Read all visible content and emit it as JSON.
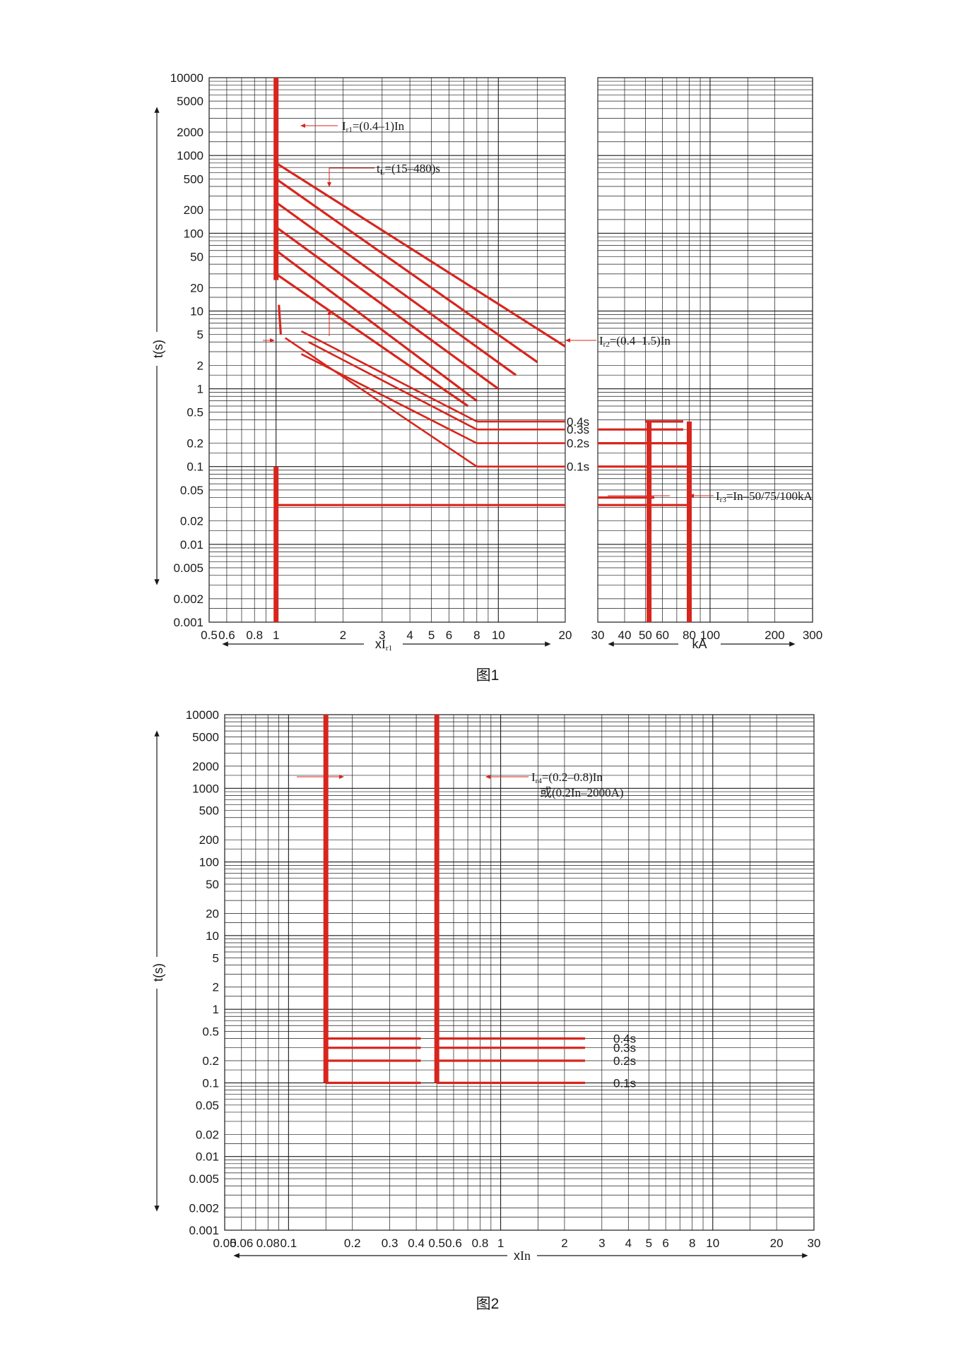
{
  "chart_data": [
    {
      "type": "line",
      "title": "",
      "caption": "图1",
      "ylabel": "t(s)",
      "y_scale": "log",
      "ylim": [
        0.001,
        10000
      ],
      "y_ticks": [
        "10000",
        "5000",
        "2000",
        "1000",
        "500",
        "200",
        "100",
        "50",
        "20",
        "10",
        "5",
        "2",
        "1",
        "0.5",
        "0.2",
        "0.1",
        "0.05",
        "0.02",
        "0.01",
        "0.005",
        "0.002",
        "0.001"
      ],
      "x_axes": [
        {
          "label": "xIr1",
          "scale": "log",
          "xlim": [
            0.5,
            20
          ],
          "ticks": [
            "0.5",
            "0.6",
            "0.8",
            "1",
            "2",
            "3",
            "4",
            "5",
            "6",
            "8",
            "10",
            "20"
          ]
        },
        {
          "label": "kA",
          "scale": "log",
          "xlim": [
            30,
            300
          ],
          "ticks": [
            "30",
            "40",
            "50",
            "60",
            "80",
            "100",
            "200",
            "300"
          ]
        }
      ],
      "annotations": {
        "ir1": {
          "main": "Ir1=(0.4–1)In"
        },
        "tl": {
          "main": "tL=(15–480)s"
        },
        "ir2": {
          "main": "Ir2=(0.4–1.5)In"
        },
        "ir3": {
          "main": "Ir3=In–50/75/100kA"
        }
      },
      "series": [
        {
          "values": [
            [
              1.0,
              10000
            ],
            [
              1.0,
              25
            ]
          ]
        },
        {
          "values": [
            [
              1.0,
              800
            ],
            [
              20,
              3.5
            ]
          ]
        },
        {
          "values": [
            [
              1.0,
              500
            ],
            [
              15,
              2.2
            ]
          ]
        },
        {
          "values": [
            [
              1.0,
              250
            ],
            [
              12,
              1.5
            ]
          ]
        },
        {
          "values": [
            [
              1.0,
              120
            ],
            [
              10,
              1.0
            ]
          ]
        },
        {
          "values": [
            [
              1.0,
              60
            ],
            [
              8,
              0.7
            ]
          ]
        },
        {
          "values": [
            [
              1.0,
              30
            ],
            [
              7.3,
              0.6
            ]
          ]
        },
        {
          "values": [
            [
              1.03,
              12
            ],
            [
              1.05,
              5
            ]
          ]
        },
        {
          "values": [
            [
              1.3,
              5.5
            ],
            [
              8,
              0.38
            ],
            [
              20,
              0.38
            ]
          ]
        },
        {
          "values": [
            [
              1.4,
              4
            ],
            [
              8,
              0.3
            ],
            [
              20,
              0.3
            ]
          ]
        },
        {
          "values": [
            [
              1.3,
              2.8
            ],
            [
              8,
              0.2
            ],
            [
              20,
              0.2
            ]
          ]
        },
        {
          "values": [
            [
              1.1,
              4.5
            ],
            [
              8,
              0.1
            ],
            [
              20,
              0.1
            ]
          ]
        },
        {
          "values": [
            [
              1.0,
              0.1
            ],
            [
              1.0,
              0.001
            ]
          ]
        },
        {
          "values": [
            [
              1.0,
              0.032
            ],
            [
              20,
              0.032
            ]
          ]
        },
        {
          "values": [
            [
              50,
              0.38
            ],
            [
              75,
              0.38
            ]
          ]
        },
        {
          "values": [
            [
              30,
              0.3
            ],
            [
              75,
              0.3
            ]
          ]
        },
        {
          "values": [
            [
              30,
              0.2
            ],
            [
              80,
              0.2
            ]
          ]
        },
        {
          "values": [
            [
              30,
              0.1
            ],
            [
              80,
              0.1
            ]
          ]
        },
        {
          "values": [
            [
              30,
              0.04
            ],
            [
              55,
              0.04
            ]
          ]
        },
        {
          "values": [
            [
              30,
              0.032
            ],
            [
              80,
              0.032
            ]
          ]
        },
        {
          "values": [
            [
              52,
              0.38
            ],
            [
              52,
              0.001
            ]
          ]
        },
        {
          "values": [
            [
              80,
              0.38
            ],
            [
              80,
              0.001
            ]
          ]
        }
      ],
      "time_labels": [
        "0.4s",
        "0.3s",
        "0.2s",
        "0.1s"
      ],
      "colors": {
        "curve": "#d8251d",
        "grid": "#1a1a1a"
      }
    },
    {
      "type": "line",
      "title": "",
      "caption": "图2",
      "ylabel": "t(s)",
      "y_scale": "log",
      "ylim": [
        0.001,
        10000
      ],
      "y_ticks": [
        "10000",
        "5000",
        "2000",
        "1000",
        "500",
        "200",
        "100",
        "50",
        "20",
        "10",
        "5",
        "2",
        "1",
        "0.5",
        "0.2",
        "0.1",
        "0.05",
        "0.02",
        "0.01",
        "0.005",
        "0.002",
        "0.001"
      ],
      "x_axes": [
        {
          "label": "xIn",
          "scale": "log",
          "xlim": [
            0.05,
            30
          ],
          "ticks": [
            "0.05",
            "0.06",
            "0.08",
            "0.1",
            "0.2",
            "0.3",
            "0.4",
            "0.5",
            "0.6",
            "0.8",
            "1",
            "2",
            "3",
            "4",
            "5",
            "6",
            "8",
            "10",
            "20",
            "30"
          ]
        }
      ],
      "annotations": {
        "ir4": {
          "main": "Ir4=(0.2–0.8)In",
          "alt": "或(0.2In–2000A)"
        }
      },
      "series": [
        {
          "values": [
            [
              0.15,
              10000
            ],
            [
              0.15,
              0.1
            ]
          ]
        },
        {
          "values": [
            [
              0.5,
              10000
            ],
            [
              0.5,
              0.1
            ]
          ]
        },
        {
          "values": [
            [
              0.15,
              0.4
            ],
            [
              0.42,
              0.4
            ]
          ]
        },
        {
          "values": [
            [
              0.15,
              0.3
            ],
            [
              0.42,
              0.3
            ]
          ]
        },
        {
          "values": [
            [
              0.15,
              0.2
            ],
            [
              0.42,
              0.2
            ]
          ]
        },
        {
          "values": [
            [
              0.15,
              0.1
            ],
            [
              0.42,
              0.1
            ]
          ]
        },
        {
          "values": [
            [
              0.5,
              0.4
            ],
            [
              2.5,
              0.4
            ]
          ]
        },
        {
          "values": [
            [
              0.5,
              0.3
            ],
            [
              2.5,
              0.3
            ]
          ]
        },
        {
          "values": [
            [
              0.5,
              0.2
            ],
            [
              2.5,
              0.2
            ]
          ]
        },
        {
          "values": [
            [
              0.5,
              0.1
            ],
            [
              2.5,
              0.1
            ]
          ]
        }
      ],
      "time_labels": [
        "0.4s",
        "0.3s",
        "0.2s",
        "0.1s"
      ],
      "colors": {
        "curve": "#d8251d",
        "grid": "#1a1a1a"
      }
    }
  ]
}
